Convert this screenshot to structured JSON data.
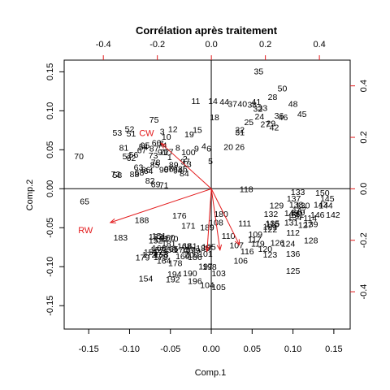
{
  "chart_data": {
    "type": "biplot",
    "title": "Corrélation après traitement",
    "xlabel": "Comp.1",
    "ylabel": "Comp.2",
    "xlim": [
      -0.18,
      0.17
    ],
    "ylim": [
      -0.18,
      0.165
    ],
    "xticks": [
      "-0.15",
      "-0.10",
      "-0.05",
      "0.00",
      "0.05",
      "0.10",
      "0.15"
    ],
    "xtick_values": [
      -0.15,
      -0.1,
      -0.05,
      0.0,
      0.05,
      0.1,
      0.15
    ],
    "yticks": [
      "-0.15",
      "-0.10",
      "-0.05",
      "0.00",
      "0.05",
      "0.10",
      "0.15"
    ],
    "ytick_values": [
      -0.15,
      -0.1,
      -0.05,
      0.0,
      0.05,
      0.1,
      0.15
    ],
    "top_axis": {
      "lim": [
        -0.545,
        0.514
      ],
      "ticks": [
        "-0.4",
        "-0.2",
        "0.0",
        "0.2",
        "0.4"
      ],
      "tick_values": [
        -0.4,
        -0.2,
        0.0,
        0.2,
        0.4
      ]
    },
    "right_axis": {
      "lim": [
        -0.545,
        0.5
      ],
      "ticks": [
        "-0.4",
        "-0.2",
        "0.0",
        "0.2",
        "0.4"
      ],
      "tick_values": [
        -0.4,
        -0.2,
        0.0,
        0.2,
        0.4
      ]
    },
    "reference_lines": [
      0
    ],
    "observation_color": "#000000",
    "variable_color": "#e31a1c",
    "variables": [
      {
        "name": "CW",
        "x": -0.186,
        "y": 0.177,
        "label_x": -0.24,
        "label_y": 0.218
      },
      {
        "name": "RW",
        "x": -0.374,
        "y": -0.131,
        "label_x": -0.466,
        "label_y": -0.16
      },
      {
        "name": "",
        "x": -0.016,
        "y": -0.243,
        "label_x": -0.016,
        "label_y": -0.29
      },
      {
        "name": "",
        "x": 0.104,
        "y": -0.218,
        "label_x": 0.098,
        "label_y": -0.262
      },
      {
        "name": "",
        "x": 0.032,
        "y": -0.238,
        "label_x": 0.018,
        "label_y": -0.285
      }
    ],
    "observations": [
      {
        "label": "1",
        "x": -0.051,
        "y": 0.041
      },
      {
        "label": "2",
        "x": -0.032,
        "y": 0.039
      },
      {
        "label": "3",
        "x": -0.06,
        "y": 0.074
      },
      {
        "label": "4",
        "x": -0.009,
        "y": 0.055
      },
      {
        "label": "5",
        "x": -0.001,
        "y": 0.036
      },
      {
        "label": "6",
        "x": -0.003,
        "y": 0.052
      },
      {
        "label": "7",
        "x": -0.061,
        "y": 0.058
      },
      {
        "label": "8",
        "x": -0.041,
        "y": 0.053
      },
      {
        "label": "9",
        "x": -0.018,
        "y": 0.052
      },
      {
        "label": "10",
        "x": -0.055,
        "y": 0.067
      },
      {
        "label": "11",
        "x": -0.019,
        "y": 0.113
      },
      {
        "label": "12",
        "x": -0.047,
        "y": 0.077
      },
      {
        "label": "13",
        "x": -0.03,
        "y": 0.032
      },
      {
        "label": "14",
        "x": 0.002,
        "y": 0.113
      },
      {
        "label": "15",
        "x": -0.017,
        "y": 0.076
      },
      {
        "label": "17",
        "x": -0.052,
        "y": 0.048
      },
      {
        "label": "18",
        "x": 0.004,
        "y": 0.092
      },
      {
        "label": "19",
        "x": -0.027,
        "y": 0.07
      },
      {
        "label": "20",
        "x": 0.021,
        "y": 0.054
      },
      {
        "label": "22",
        "x": 0.035,
        "y": 0.076
      },
      {
        "label": "24",
        "x": 0.059,
        "y": 0.093
      },
      {
        "label": "25",
        "x": 0.046,
        "y": 0.086
      },
      {
        "label": "26",
        "x": 0.035,
        "y": 0.054
      },
      {
        "label": "27",
        "x": 0.066,
        "y": 0.083
      },
      {
        "label": "28",
        "x": 0.075,
        "y": 0.118
      },
      {
        "label": "29",
        "x": 0.073,
        "y": 0.084
      },
      {
        "label": "31",
        "x": 0.035,
        "y": 0.073
      },
      {
        "label": "32",
        "x": 0.057,
        "y": 0.103
      },
      {
        "label": "33",
        "x": 0.063,
        "y": 0.104
      },
      {
        "label": "35",
        "x": 0.058,
        "y": 0.151
      },
      {
        "label": "36",
        "x": 0.083,
        "y": 0.094
      },
      {
        "label": "37",
        "x": 0.026,
        "y": 0.109
      },
      {
        "label": "38",
        "x": 0.05,
        "y": 0.108
      },
      {
        "label": "40",
        "x": 0.038,
        "y": 0.109
      },
      {
        "label": "41",
        "x": 0.055,
        "y": 0.112
      },
      {
        "label": "42",
        "x": 0.077,
        "y": 0.079
      },
      {
        "label": "44",
        "x": 0.016,
        "y": 0.112
      },
      {
        "label": "45",
        "x": 0.111,
        "y": 0.096
      },
      {
        "label": "46",
        "x": 0.088,
        "y": 0.092
      },
      {
        "label": "48",
        "x": 0.1,
        "y": 0.109
      },
      {
        "label": "50",
        "x": 0.087,
        "y": 0.129
      },
      {
        "label": "51",
        "x": -0.098,
        "y": 0.071
      },
      {
        "label": "52",
        "x": -0.1,
        "y": 0.077
      },
      {
        "label": "53",
        "x": -0.115,
        "y": 0.072
      },
      {
        "label": "54",
        "x": -0.083,
        "y": 0.054
      },
      {
        "label": "56",
        "x": -0.095,
        "y": 0.044
      },
      {
        "label": "57",
        "x": -0.103,
        "y": 0.042
      },
      {
        "label": "58",
        "x": -0.115,
        "y": 0.018
      },
      {
        "label": "60",
        "x": -0.067,
        "y": 0.059
      },
      {
        "label": "62",
        "x": -0.098,
        "y": 0.04
      },
      {
        "label": "63",
        "x": -0.089,
        "y": 0.028
      },
      {
        "label": "64",
        "x": -0.077,
        "y": 0.023
      },
      {
        "label": "65",
        "x": -0.155,
        "y": -0.016
      },
      {
        "label": "66",
        "x": -0.08,
        "y": 0.025
      },
      {
        "label": "67",
        "x": -0.085,
        "y": 0.05
      },
      {
        "label": "68",
        "x": -0.088,
        "y": 0.021
      },
      {
        "label": "69",
        "x": -0.068,
        "y": 0.006
      },
      {
        "label": "70",
        "x": -0.162,
        "y": 0.042
      },
      {
        "label": "71",
        "x": -0.058,
        "y": 0.005
      },
      {
        "label": "72",
        "x": -0.117,
        "y": 0.019
      },
      {
        "label": "73",
        "x": -0.071,
        "y": 0.043
      },
      {
        "label": "74",
        "x": -0.06,
        "y": 0.056
      },
      {
        "label": "75",
        "x": -0.07,
        "y": 0.089
      },
      {
        "label": "77",
        "x": -0.057,
        "y": 0.047
      },
      {
        "label": "78",
        "x": -0.068,
        "y": 0.034
      },
      {
        "label": "79",
        "x": -0.047,
        "y": 0.026
      },
      {
        "label": "81",
        "x": -0.107,
        "y": 0.053
      },
      {
        "label": "82",
        "x": -0.075,
        "y": 0.011
      },
      {
        "label": "84",
        "x": -0.033,
        "y": 0.02
      },
      {
        "label": "85",
        "x": -0.069,
        "y": 0.031
      },
      {
        "label": "86",
        "x": -0.035,
        "y": 0.026
      },
      {
        "label": "87",
        "x": -0.07,
        "y": 0.052
      },
      {
        "label": "88",
        "x": -0.094,
        "y": 0.019
      },
      {
        "label": "89",
        "x": -0.046,
        "y": 0.031
      },
      {
        "label": "90",
        "x": -0.058,
        "y": 0.025
      },
      {
        "label": "91",
        "x": -0.06,
        "y": 0.047
      },
      {
        "label": "94",
        "x": -0.041,
        "y": 0.024
      },
      {
        "label": "95",
        "x": -0.081,
        "y": 0.056
      },
      {
        "label": "96",
        "x": -0.052,
        "y": 0.026
      },
      {
        "label": "97",
        "x": -0.032,
        "y": 0.035
      },
      {
        "label": "100",
        "x": -0.028,
        "y": 0.047
      },
      {
        "label": "101",
        "x": -0.007,
        "y": -0.083
      },
      {
        "label": "103",
        "x": 0.009,
        "y": -0.108
      },
      {
        "label": "104",
        "x": -0.005,
        "y": -0.123
      },
      {
        "label": "105",
        "x": 0.009,
        "y": -0.126
      },
      {
        "label": "106",
        "x": 0.036,
        "y": -0.092
      },
      {
        "label": "107",
        "x": 0.031,
        "y": -0.072
      },
      {
        "label": "108",
        "x": 0.006,
        "y": -0.043
      },
      {
        "label": "109",
        "x": 0.054,
        "y": -0.058
      },
      {
        "label": "110",
        "x": 0.021,
        "y": -0.06
      },
      {
        "label": "111",
        "x": 0.041,
        "y": -0.044
      },
      {
        "label": "112",
        "x": 0.1,
        "y": -0.056
      },
      {
        "label": "114",
        "x": 0.121,
        "y": -0.037
      },
      {
        "label": "115",
        "x": 0.075,
        "y": -0.045
      },
      {
        "label": "116",
        "x": 0.044,
        "y": -0.08
      },
      {
        "label": "117",
        "x": 0.053,
        "y": -0.065
      },
      {
        "label": "118",
        "x": 0.043,
        "y": 0.0
      },
      {
        "label": "119",
        "x": 0.057,
        "y": -0.07
      },
      {
        "label": "120",
        "x": 0.066,
        "y": -0.077
      },
      {
        "label": "121",
        "x": 0.072,
        "y": -0.048
      },
      {
        "label": "122",
        "x": 0.072,
        "y": -0.052
      },
      {
        "label": "123",
        "x": 0.072,
        "y": -0.084
      },
      {
        "label": "124",
        "x": 0.094,
        "y": -0.07
      },
      {
        "label": "125",
        "x": 0.1,
        "y": -0.105
      },
      {
        "label": "126",
        "x": 0.081,
        "y": -0.069
      },
      {
        "label": "127",
        "x": 0.115,
        "y": -0.046
      },
      {
        "label": "128",
        "x": 0.122,
        "y": -0.066
      },
      {
        "label": "129",
        "x": 0.08,
        "y": -0.021
      },
      {
        "label": "130",
        "x": 0.112,
        "y": -0.021
      },
      {
        "label": "131",
        "x": 0.098,
        "y": -0.043
      },
      {
        "label": "132",
        "x": 0.073,
        "y": -0.032
      },
      {
        "label": "133",
        "x": 0.106,
        "y": -0.004
      },
      {
        "label": "134",
        "x": 0.102,
        "y": -0.036
      },
      {
        "label": "135",
        "x": 0.075,
        "y": -0.044
      },
      {
        "label": "136",
        "x": 0.1,
        "y": -0.083
      },
      {
        "label": "137",
        "x": 0.101,
        "y": -0.012
      },
      {
        "label": "138",
        "x": 0.104,
        "y": -0.02
      },
      {
        "label": "139",
        "x": 0.122,
        "y": -0.045
      },
      {
        "label": "140",
        "x": 0.106,
        "y": -0.03
      },
      {
        "label": "141",
        "x": 0.105,
        "y": -0.033
      },
      {
        "label": "142",
        "x": 0.149,
        "y": -0.033
      },
      {
        "label": "143",
        "x": 0.134,
        "y": -0.02
      },
      {
        "label": "144",
        "x": 0.14,
        "y": -0.021
      },
      {
        "label": "145",
        "x": 0.142,
        "y": -0.012
      },
      {
        "label": "146",
        "x": 0.13,
        "y": -0.033
      },
      {
        "label": "147",
        "x": 0.108,
        "y": -0.027
      },
      {
        "label": "148",
        "x": 0.098,
        "y": -0.031
      },
      {
        "label": "150",
        "x": 0.136,
        "y": -0.005
      },
      {
        "label": "151",
        "x": -0.064,
        "y": -0.06
      },
      {
        "label": "152",
        "x": -0.068,
        "y": -0.066
      },
      {
        "label": "153",
        "x": -0.061,
        "y": -0.084
      },
      {
        "label": "154",
        "x": -0.08,
        "y": -0.115
      },
      {
        "label": "155",
        "x": -0.074,
        "y": -0.081
      },
      {
        "label": "157",
        "x": -0.066,
        "y": -0.078
      },
      {
        "label": "158",
        "x": -0.051,
        "y": -0.078
      },
      {
        "label": "160",
        "x": -0.053,
        "y": -0.062
      },
      {
        "label": "161",
        "x": -0.026,
        "y": -0.073
      },
      {
        "label": "162",
        "x": -0.061,
        "y": -0.064
      },
      {
        "label": "163",
        "x": -0.068,
        "y": -0.061
      },
      {
        "label": "164",
        "x": -0.058,
        "y": -0.092
      },
      {
        "label": "165",
        "x": -0.049,
        "y": -0.077
      },
      {
        "label": "166",
        "x": -0.064,
        "y": -0.076
      },
      {
        "label": "167",
        "x": -0.028,
        "y": -0.078
      },
      {
        "label": "168",
        "x": -0.033,
        "y": -0.073
      },
      {
        "label": "169",
        "x": -0.035,
        "y": -0.086
      },
      {
        "label": "170",
        "x": -0.049,
        "y": -0.064
      },
      {
        "label": "171",
        "x": -0.028,
        "y": -0.047
      },
      {
        "label": "172",
        "x": -0.076,
        "y": -0.084
      },
      {
        "label": "173",
        "x": -0.062,
        "y": -0.087
      },
      {
        "label": "174",
        "x": -0.037,
        "y": -0.078
      },
      {
        "label": "175",
        "x": -0.062,
        "y": -0.081
      },
      {
        "label": "176",
        "x": -0.039,
        "y": -0.034
      },
      {
        "label": "177",
        "x": -0.063,
        "y": -0.084
      },
      {
        "label": "178",
        "x": -0.044,
        "y": -0.095
      },
      {
        "label": "179",
        "x": -0.084,
        "y": -0.088
      },
      {
        "label": "180",
        "x": 0.012,
        "y": -0.032
      },
      {
        "label": "181",
        "x": -0.052,
        "y": -0.07
      },
      {
        "label": "183",
        "x": -0.111,
        "y": -0.062
      },
      {
        "label": "185",
        "x": -0.01,
        "y": -0.076
      },
      {
        "label": "186",
        "x": -0.02,
        "y": -0.087
      },
      {
        "label": "188",
        "x": -0.085,
        "y": -0.04
      },
      {
        "label": "189",
        "x": -0.005,
        "y": -0.049
      },
      {
        "label": "190",
        "x": -0.026,
        "y": -0.108
      },
      {
        "label": "192",
        "x": -0.047,
        "y": -0.116
      },
      {
        "label": "194",
        "x": -0.045,
        "y": -0.109
      },
      {
        "label": "195",
        "x": -0.003,
        "y": -0.074
      },
      {
        "label": "196",
        "x": -0.02,
        "y": -0.118
      },
      {
        "label": "197",
        "x": -0.007,
        "y": -0.099
      },
      {
        "label": "198",
        "x": -0.002,
        "y": -0.1
      },
      {
        "label": "199",
        "x": -0.022,
        "y": -0.079
      },
      {
        "label": "200",
        "x": -0.024,
        "y": -0.084
      }
    ]
  }
}
